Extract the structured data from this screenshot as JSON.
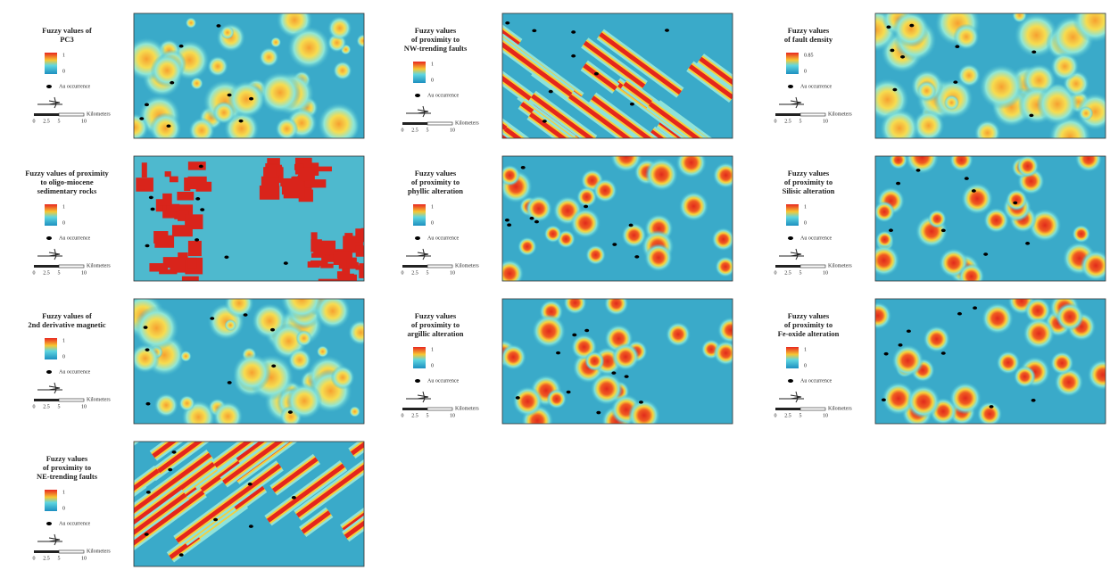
{
  "panels": [
    {
      "title": [
        "Fuzzy values of",
        "PC3"
      ],
      "legend_max": 1,
      "legend_min": 0,
      "occurrence_label": "Au occurrence",
      "scale_unit": "Kilometers",
      "scale_ticks": [
        0,
        2.5,
        5,
        10
      ]
    },
    {
      "title": [
        "Fuzzy values",
        "of proximity to",
        "NW-trending faults"
      ],
      "legend_max": 1,
      "legend_min": 0,
      "occurrence_label": "Au occurrence",
      "scale_unit": "Kilometers",
      "scale_ticks": [
        0,
        2.5,
        5,
        10
      ]
    },
    {
      "title": [
        "Fuzzy values",
        "of fault density"
      ],
      "legend_max": 0.85,
      "legend_min": 0,
      "occurrence_label": "Au occurrence",
      "scale_unit": "Kilometers",
      "scale_ticks": [
        0,
        2.5,
        5,
        10
      ]
    },
    {
      "title": [
        "Fuzzy values of proximity",
        "to oligo-miocene",
        "sedimentary rocks"
      ],
      "legend_max": 1,
      "legend_min": 0,
      "occurrence_label": "Au occurrence",
      "scale_unit": "Kilometers",
      "scale_ticks": [
        0,
        2.5,
        5,
        10
      ]
    },
    {
      "title": [
        "Fuzzy values",
        "of proximity to",
        "phyllic alteration"
      ],
      "legend_max": 1,
      "legend_min": 0,
      "occurrence_label": "Au occurrence",
      "scale_unit": "Kilometers",
      "scale_ticks": [
        0,
        2.5,
        5,
        10
      ]
    },
    {
      "title": [
        "Fuzzy values",
        "of proximity to",
        "Silisic alteration"
      ],
      "legend_max": 1,
      "legend_min": 0,
      "occurrence_label": "Au occurrence",
      "scale_unit": "Kilometers",
      "scale_ticks": [
        0,
        2.5,
        5,
        10
      ]
    },
    {
      "title": [
        "Fuzzy values of",
        "2nd derivative magnetic"
      ],
      "legend_max": 1,
      "legend_min": 0,
      "occurrence_label": "Au occurrence",
      "scale_unit": "Kilometers",
      "scale_ticks": [
        0,
        2.5,
        5,
        10
      ]
    },
    {
      "title": [
        "Fuzzy values",
        "of proximity to",
        "argillic alteration"
      ],
      "legend_max": 1,
      "legend_min": 0,
      "occurrence_label": "Au occurrence",
      "scale_unit": "Kilometers",
      "scale_ticks": [
        0,
        2.5,
        5,
        10
      ]
    },
    {
      "title": [
        "Fuzzy values",
        "of proximity to",
        "Fe-oxide alteration"
      ],
      "legend_max": 1,
      "legend_min": 0,
      "occurrence_label": "Au occurrence",
      "scale_unit": "Kilometers",
      "scale_ticks": [
        0,
        2.5,
        5,
        10
      ]
    },
    {
      "title": [
        "Fuzzy values",
        "of proximity to",
        "NE-trending faults"
      ],
      "legend_max": 1,
      "legend_min": 0,
      "occurrence_label": "Au occurrence",
      "scale_unit": "Kilometers",
      "scale_ticks": [
        0,
        2.5,
        5,
        10
      ]
    }
  ]
}
